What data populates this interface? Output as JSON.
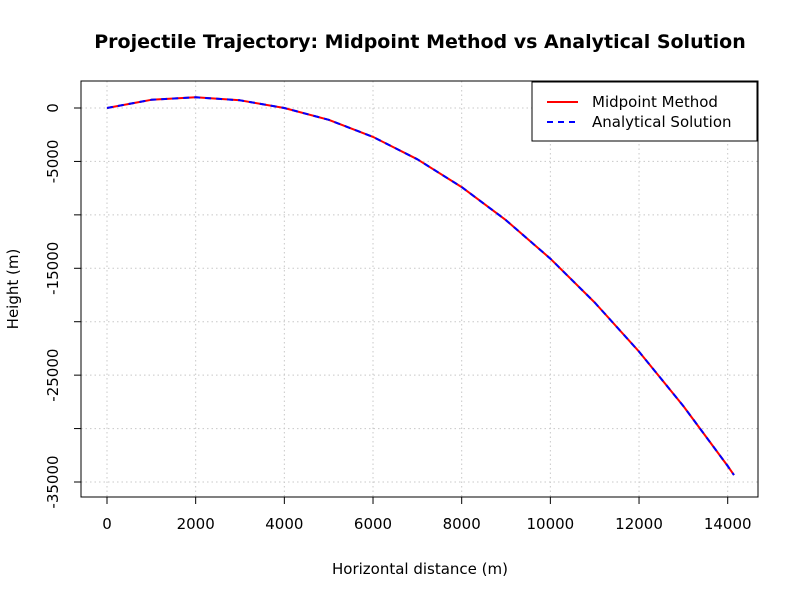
{
  "chart_data": {
    "type": "line",
    "title": "Projectile Trajectory: Midpoint Method vs Analytical Solution",
    "xlabel": "Horizontal distance (m)",
    "ylabel": "Height (m)",
    "xlim": [
      0,
      14142
    ],
    "ylim": [
      -35000,
      1000
    ],
    "xticks": [
      0,
      2000,
      4000,
      6000,
      8000,
      10000,
      12000,
      14000
    ],
    "xtick_labels": [
      "0",
      "2000",
      "4000",
      "6000",
      "8000",
      "10000",
      "12000",
      "14000"
    ],
    "yticks": [
      -35000,
      -30000,
      -25000,
      -20000,
      -15000,
      -10000,
      -5000,
      0
    ],
    "ytick_labels": [
      "-35000",
      "",
      "-25000",
      "",
      "-15000",
      "",
      "-5000",
      "0"
    ],
    "grid": true,
    "legend_position": "top-right",
    "series": [
      {
        "name": "Midpoint Method",
        "color": "#ff0000",
        "style": "solid",
        "x": [
          0,
          1000,
          2000,
          3000,
          4000,
          5000,
          6000,
          7000,
          8000,
          9000,
          10000,
          11000,
          12000,
          13000,
          14000,
          14142
        ],
        "y": [
          0,
          765,
          1000,
          720,
          0,
          -1100,
          -2700,
          -4800,
          -7400,
          -10500,
          -14100,
          -18200,
          -22800,
          -27900,
          -33500,
          -34350
        ]
      },
      {
        "name": "Analytical Solution",
        "color": "#0000ff",
        "style": "dashed",
        "x": [
          0,
          1000,
          2000,
          3000,
          4000,
          5000,
          6000,
          7000,
          8000,
          9000,
          10000,
          11000,
          12000,
          13000,
          14000,
          14142
        ],
        "y": [
          0,
          765,
          1000,
          720,
          0,
          -1100,
          -2700,
          -4800,
          -7400,
          -10500,
          -14100,
          -18200,
          -22800,
          -27900,
          -33500,
          -34350
        ]
      }
    ]
  }
}
